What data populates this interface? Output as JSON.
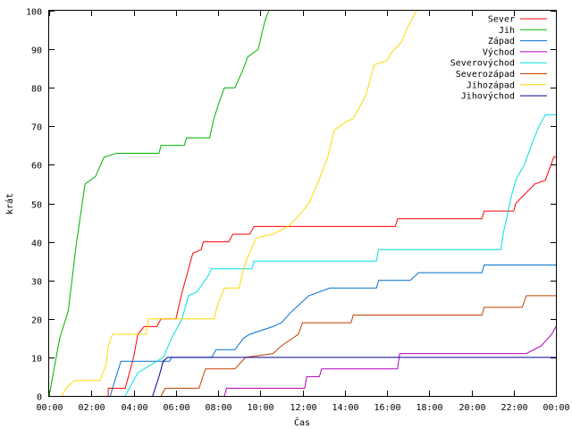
{
  "chart_data": {
    "type": "line",
    "xlabel": "Čas",
    "ylabel": "krát",
    "xlim": [
      0,
      24
    ],
    "ylim": [
      0,
      100
    ],
    "grid": false,
    "legend_position": "top-right",
    "x_ticks": [
      {
        "value": 0,
        "label": "00:00"
      },
      {
        "value": 2,
        "label": "02:00"
      },
      {
        "value": 4,
        "label": "04:00"
      },
      {
        "value": 6,
        "label": "06:00"
      },
      {
        "value": 8,
        "label": "08:00"
      },
      {
        "value": 10,
        "label": "10:00"
      },
      {
        "value": 12,
        "label": "12:00"
      },
      {
        "value": 14,
        "label": "14:00"
      },
      {
        "value": 16,
        "label": "16:00"
      },
      {
        "value": 18,
        "label": "18:00"
      },
      {
        "value": 20,
        "label": "20:00"
      },
      {
        "value": 22,
        "label": "22:00"
      },
      {
        "value": 24,
        "label": "00:00"
      }
    ],
    "y_ticks": [
      0,
      10,
      20,
      30,
      40,
      50,
      60,
      70,
      80,
      90,
      100
    ],
    "series": [
      {
        "name": "Sever",
        "color": "#ff0000",
        "points": [
          [
            2.8,
            0
          ],
          [
            2.8,
            2
          ],
          [
            3.6,
            2
          ],
          [
            3.8,
            6
          ],
          [
            4.0,
            10
          ],
          [
            4.2,
            16
          ],
          [
            4.5,
            18
          ],
          [
            5.1,
            18
          ],
          [
            5.3,
            20
          ],
          [
            6.0,
            20
          ],
          [
            6.3,
            27
          ],
          [
            6.5,
            31
          ],
          [
            6.8,
            37
          ],
          [
            7.2,
            38
          ],
          [
            7.3,
            40
          ],
          [
            8.5,
            40
          ],
          [
            8.7,
            42
          ],
          [
            9.5,
            42
          ],
          [
            9.7,
            44
          ],
          [
            16.4,
            44
          ],
          [
            16.5,
            46
          ],
          [
            20.5,
            46
          ],
          [
            20.6,
            48
          ],
          [
            22.0,
            48
          ],
          [
            22.1,
            50
          ],
          [
            23.0,
            55
          ],
          [
            23.5,
            56
          ],
          [
            23.9,
            62
          ],
          [
            24,
            62
          ]
        ]
      },
      {
        "name": "Jih",
        "color": "#00b000",
        "points": [
          [
            0,
            0
          ],
          [
            0.2,
            6
          ],
          [
            0.5,
            15
          ],
          [
            0.9,
            22
          ],
          [
            1.3,
            40
          ],
          [
            1.7,
            55
          ],
          [
            2.2,
            57
          ],
          [
            2.6,
            62
          ],
          [
            3.2,
            63
          ],
          [
            5.2,
            63
          ],
          [
            5.3,
            65
          ],
          [
            6.4,
            65
          ],
          [
            6.5,
            67
          ],
          [
            7.6,
            67
          ],
          [
            7.8,
            72
          ],
          [
            8.1,
            77
          ],
          [
            8.3,
            80
          ],
          [
            8.8,
            80
          ],
          [
            9.2,
            85
          ],
          [
            9.4,
            88
          ],
          [
            9.9,
            90
          ],
          [
            10.2,
            97
          ],
          [
            10.4,
            100
          ]
        ]
      },
      {
        "name": "Západ",
        "color": "#0070d0",
        "points": [
          [
            2.9,
            0
          ],
          [
            3.0,
            2
          ],
          [
            3.4,
            9
          ],
          [
            5.7,
            9
          ],
          [
            5.8,
            10
          ],
          [
            7.7,
            10
          ],
          [
            7.9,
            12
          ],
          [
            8.8,
            12
          ],
          [
            9.2,
            15
          ],
          [
            9.5,
            16
          ],
          [
            10.6,
            18
          ],
          [
            11.0,
            19
          ],
          [
            11.5,
            22
          ],
          [
            12.3,
            26
          ],
          [
            13.3,
            28
          ],
          [
            15.5,
            28
          ],
          [
            15.6,
            30
          ],
          [
            17.1,
            30
          ],
          [
            17.5,
            32
          ],
          [
            20.5,
            32
          ],
          [
            20.6,
            34
          ],
          [
            24,
            34
          ]
        ]
      },
      {
        "name": "Východ",
        "color": "#b000c0",
        "points": [
          [
            8.3,
            0
          ],
          [
            8.4,
            2
          ],
          [
            12.1,
            2
          ],
          [
            12.2,
            5
          ],
          [
            12.8,
            5
          ],
          [
            12.9,
            7
          ],
          [
            16.5,
            7
          ],
          [
            16.6,
            11
          ],
          [
            22.6,
            11
          ],
          [
            23.3,
            13
          ],
          [
            23.8,
            16
          ],
          [
            24,
            18
          ]
        ]
      },
      {
        "name": "Severovýchod",
        "color": "#00e0e0",
        "points": [
          [
            3.6,
            0
          ],
          [
            3.8,
            2
          ],
          [
            4.2,
            6
          ],
          [
            5.4,
            10
          ],
          [
            5.8,
            15
          ],
          [
            6.3,
            20
          ],
          [
            6.6,
            26
          ],
          [
            7.0,
            27
          ],
          [
            7.5,
            31
          ],
          [
            7.7,
            33
          ],
          [
            9.6,
            33
          ],
          [
            9.7,
            35
          ],
          [
            15.5,
            35
          ],
          [
            15.6,
            38
          ],
          [
            21.4,
            38
          ],
          [
            21.5,
            42
          ],
          [
            21.9,
            52
          ],
          [
            22.1,
            56
          ],
          [
            22.5,
            60
          ],
          [
            22.9,
            66
          ],
          [
            23.2,
            70
          ],
          [
            23.5,
            73
          ],
          [
            24,
            73
          ]
        ]
      },
      {
        "name": "Severozápad",
        "color": "#c04000",
        "points": [
          [
            5.3,
            0
          ],
          [
            5.5,
            2
          ],
          [
            7.1,
            2
          ],
          [
            7.4,
            7
          ],
          [
            8.8,
            7
          ],
          [
            9.3,
            10
          ],
          [
            10.6,
            11
          ],
          [
            11.0,
            13
          ],
          [
            11.8,
            16
          ],
          [
            12.0,
            19
          ],
          [
            14.3,
            19
          ],
          [
            14.4,
            21
          ],
          [
            20.5,
            21
          ],
          [
            20.6,
            23
          ],
          [
            22.4,
            23
          ],
          [
            22.6,
            26
          ],
          [
            24,
            26
          ]
        ]
      },
      {
        "name": "Jihozápad",
        "color": "#ffd700",
        "points": [
          [
            0.6,
            0
          ],
          [
            0.8,
            2
          ],
          [
            1.2,
            4
          ],
          [
            2.4,
            4
          ],
          [
            2.7,
            8
          ],
          [
            2.8,
            13
          ],
          [
            3.0,
            16
          ],
          [
            4.6,
            16
          ],
          [
            4.7,
            20
          ],
          [
            7.8,
            20
          ],
          [
            8.0,
            24
          ],
          [
            8.3,
            28
          ],
          [
            9.0,
            28
          ],
          [
            9.2,
            33
          ],
          [
            9.4,
            36
          ],
          [
            9.8,
            41
          ],
          [
            10.6,
            42
          ],
          [
            11.3,
            44
          ],
          [
            11.7,
            46
          ],
          [
            12.3,
            50
          ],
          [
            12.7,
            55
          ],
          [
            13.2,
            62
          ],
          [
            13.5,
            69
          ],
          [
            14.0,
            71
          ],
          [
            14.4,
            72
          ],
          [
            15.0,
            78
          ],
          [
            15.4,
            86
          ],
          [
            16.0,
            87
          ],
          [
            16.2,
            89
          ],
          [
            16.7,
            92
          ],
          [
            17.0,
            96
          ],
          [
            17.4,
            100
          ]
        ]
      },
      {
        "name": "Jihovýchod",
        "color": "#000090",
        "points": [
          [
            4.9,
            0
          ],
          [
            5.2,
            5
          ],
          [
            5.4,
            9
          ],
          [
            5.6,
            10
          ],
          [
            24,
            10
          ]
        ]
      }
    ]
  }
}
